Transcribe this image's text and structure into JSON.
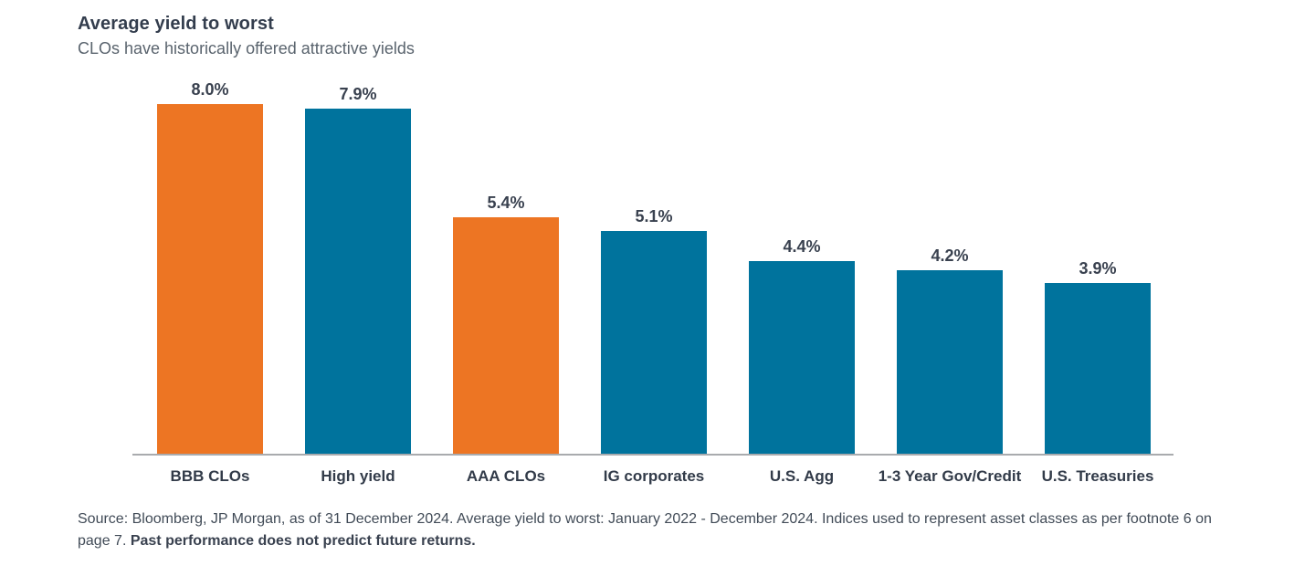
{
  "header": {
    "title": "Average yield to worst",
    "subtitle": "CLOs have historically offered attractive yields"
  },
  "chart_data": {
    "type": "bar",
    "title": "Average yield to worst",
    "subtitle": "CLOs have historically offered attractive yields",
    "categories": [
      "BBB CLOs",
      "High yield",
      "AAA CLOs",
      "IG corporates",
      "U.S. Agg",
      "1-3 Year Gov/Credit",
      "U.S. Treasuries"
    ],
    "values": [
      8.0,
      7.9,
      5.4,
      5.1,
      4.4,
      4.2,
      3.9
    ],
    "value_labels": [
      "8.0%",
      "7.9%",
      "5.4%",
      "5.1%",
      "4.4%",
      "4.2%",
      "3.9%"
    ],
    "bar_colors": [
      "#ED7523",
      "#00739D",
      "#ED7523",
      "#00739D",
      "#00739D",
      "#00739D",
      "#00739D"
    ],
    "xlabel": "",
    "ylabel": "",
    "ylim": [
      0,
      8.5
    ],
    "grid": false,
    "legend": false,
    "value_label_position": "above-bars",
    "baseline_axis": true
  },
  "footnote": {
    "text_regular": "Source: Bloomberg, JP Morgan, as of 31 December 2024. Average yield to worst: January 2022 - December 2024. Indices used to represent asset classes as per footnote 6 on page 7. ",
    "text_bold": "Past performance does not predict future returns."
  },
  "colors": {
    "orange": "#ED7523",
    "blue": "#00739D",
    "title_text": "#333D4D",
    "subtitle_text": "#5A646E",
    "label_text": "#39414F",
    "axis_line": "#A9ABAE",
    "footnote_text": "#414B57",
    "background": "#FFFFFF"
  }
}
